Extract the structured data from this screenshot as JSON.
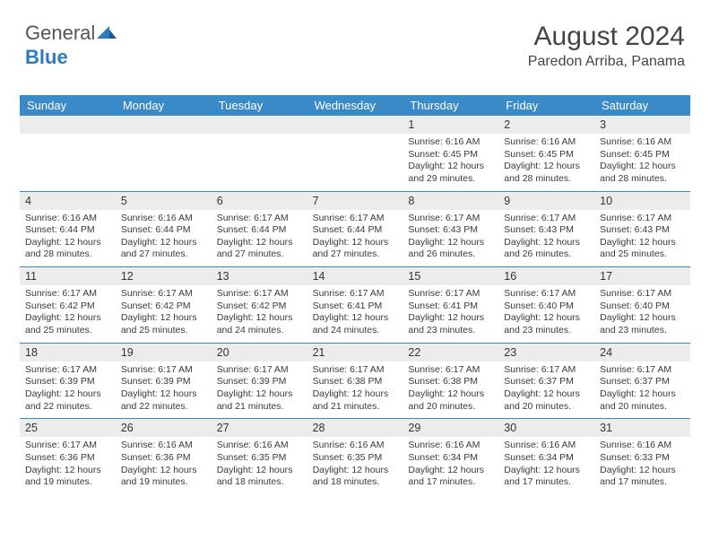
{
  "logo": {
    "part1": "General",
    "part2": "Blue"
  },
  "title": "August 2024",
  "subtitle": "Paredon Arriba, Panama",
  "styling": {
    "header_bg": "#3a8ac8",
    "header_text": "#ffffff",
    "daynum_bg": "#ececec",
    "page_bg": "#ffffff",
    "text_color": "#3a3a3a",
    "week_border": "#3a8ac8",
    "title_fontsize": 30,
    "body_fontsize": 10.5
  },
  "weekdays": [
    "Sunday",
    "Monday",
    "Tuesday",
    "Wednesday",
    "Thursday",
    "Friday",
    "Saturday"
  ],
  "weeks": [
    [
      {
        "empty": true
      },
      {
        "empty": true
      },
      {
        "empty": true
      },
      {
        "empty": true
      },
      {
        "day": "1",
        "sunrise": "Sunrise: 6:16 AM",
        "sunset": "Sunset: 6:45 PM",
        "d1": "Daylight: 12 hours",
        "d2": "and 29 minutes."
      },
      {
        "day": "2",
        "sunrise": "Sunrise: 6:16 AM",
        "sunset": "Sunset: 6:45 PM",
        "d1": "Daylight: 12 hours",
        "d2": "and 28 minutes."
      },
      {
        "day": "3",
        "sunrise": "Sunrise: 6:16 AM",
        "sunset": "Sunset: 6:45 PM",
        "d1": "Daylight: 12 hours",
        "d2": "and 28 minutes."
      }
    ],
    [
      {
        "day": "4",
        "sunrise": "Sunrise: 6:16 AM",
        "sunset": "Sunset: 6:44 PM",
        "d1": "Daylight: 12 hours",
        "d2": "and 28 minutes."
      },
      {
        "day": "5",
        "sunrise": "Sunrise: 6:16 AM",
        "sunset": "Sunset: 6:44 PM",
        "d1": "Daylight: 12 hours",
        "d2": "and 27 minutes."
      },
      {
        "day": "6",
        "sunrise": "Sunrise: 6:17 AM",
        "sunset": "Sunset: 6:44 PM",
        "d1": "Daylight: 12 hours",
        "d2": "and 27 minutes."
      },
      {
        "day": "7",
        "sunrise": "Sunrise: 6:17 AM",
        "sunset": "Sunset: 6:44 PM",
        "d1": "Daylight: 12 hours",
        "d2": "and 27 minutes."
      },
      {
        "day": "8",
        "sunrise": "Sunrise: 6:17 AM",
        "sunset": "Sunset: 6:43 PM",
        "d1": "Daylight: 12 hours",
        "d2": "and 26 minutes."
      },
      {
        "day": "9",
        "sunrise": "Sunrise: 6:17 AM",
        "sunset": "Sunset: 6:43 PM",
        "d1": "Daylight: 12 hours",
        "d2": "and 26 minutes."
      },
      {
        "day": "10",
        "sunrise": "Sunrise: 6:17 AM",
        "sunset": "Sunset: 6:43 PM",
        "d1": "Daylight: 12 hours",
        "d2": "and 25 minutes."
      }
    ],
    [
      {
        "day": "11",
        "sunrise": "Sunrise: 6:17 AM",
        "sunset": "Sunset: 6:42 PM",
        "d1": "Daylight: 12 hours",
        "d2": "and 25 minutes."
      },
      {
        "day": "12",
        "sunrise": "Sunrise: 6:17 AM",
        "sunset": "Sunset: 6:42 PM",
        "d1": "Daylight: 12 hours",
        "d2": "and 25 minutes."
      },
      {
        "day": "13",
        "sunrise": "Sunrise: 6:17 AM",
        "sunset": "Sunset: 6:42 PM",
        "d1": "Daylight: 12 hours",
        "d2": "and 24 minutes."
      },
      {
        "day": "14",
        "sunrise": "Sunrise: 6:17 AM",
        "sunset": "Sunset: 6:41 PM",
        "d1": "Daylight: 12 hours",
        "d2": "and 24 minutes."
      },
      {
        "day": "15",
        "sunrise": "Sunrise: 6:17 AM",
        "sunset": "Sunset: 6:41 PM",
        "d1": "Daylight: 12 hours",
        "d2": "and 23 minutes."
      },
      {
        "day": "16",
        "sunrise": "Sunrise: 6:17 AM",
        "sunset": "Sunset: 6:40 PM",
        "d1": "Daylight: 12 hours",
        "d2": "and 23 minutes."
      },
      {
        "day": "17",
        "sunrise": "Sunrise: 6:17 AM",
        "sunset": "Sunset: 6:40 PM",
        "d1": "Daylight: 12 hours",
        "d2": "and 23 minutes."
      }
    ],
    [
      {
        "day": "18",
        "sunrise": "Sunrise: 6:17 AM",
        "sunset": "Sunset: 6:39 PM",
        "d1": "Daylight: 12 hours",
        "d2": "and 22 minutes."
      },
      {
        "day": "19",
        "sunrise": "Sunrise: 6:17 AM",
        "sunset": "Sunset: 6:39 PM",
        "d1": "Daylight: 12 hours",
        "d2": "and 22 minutes."
      },
      {
        "day": "20",
        "sunrise": "Sunrise: 6:17 AM",
        "sunset": "Sunset: 6:39 PM",
        "d1": "Daylight: 12 hours",
        "d2": "and 21 minutes."
      },
      {
        "day": "21",
        "sunrise": "Sunrise: 6:17 AM",
        "sunset": "Sunset: 6:38 PM",
        "d1": "Daylight: 12 hours",
        "d2": "and 21 minutes."
      },
      {
        "day": "22",
        "sunrise": "Sunrise: 6:17 AM",
        "sunset": "Sunset: 6:38 PM",
        "d1": "Daylight: 12 hours",
        "d2": "and 20 minutes."
      },
      {
        "day": "23",
        "sunrise": "Sunrise: 6:17 AM",
        "sunset": "Sunset: 6:37 PM",
        "d1": "Daylight: 12 hours",
        "d2": "and 20 minutes."
      },
      {
        "day": "24",
        "sunrise": "Sunrise: 6:17 AM",
        "sunset": "Sunset: 6:37 PM",
        "d1": "Daylight: 12 hours",
        "d2": "and 20 minutes."
      }
    ],
    [
      {
        "day": "25",
        "sunrise": "Sunrise: 6:17 AM",
        "sunset": "Sunset: 6:36 PM",
        "d1": "Daylight: 12 hours",
        "d2": "and 19 minutes."
      },
      {
        "day": "26",
        "sunrise": "Sunrise: 6:16 AM",
        "sunset": "Sunset: 6:36 PM",
        "d1": "Daylight: 12 hours",
        "d2": "and 19 minutes."
      },
      {
        "day": "27",
        "sunrise": "Sunrise: 6:16 AM",
        "sunset": "Sunset: 6:35 PM",
        "d1": "Daylight: 12 hours",
        "d2": "and 18 minutes."
      },
      {
        "day": "28",
        "sunrise": "Sunrise: 6:16 AM",
        "sunset": "Sunset: 6:35 PM",
        "d1": "Daylight: 12 hours",
        "d2": "and 18 minutes."
      },
      {
        "day": "29",
        "sunrise": "Sunrise: 6:16 AM",
        "sunset": "Sunset: 6:34 PM",
        "d1": "Daylight: 12 hours",
        "d2": "and 17 minutes."
      },
      {
        "day": "30",
        "sunrise": "Sunrise: 6:16 AM",
        "sunset": "Sunset: 6:34 PM",
        "d1": "Daylight: 12 hours",
        "d2": "and 17 minutes."
      },
      {
        "day": "31",
        "sunrise": "Sunrise: 6:16 AM",
        "sunset": "Sunset: 6:33 PM",
        "d1": "Daylight: 12 hours",
        "d2": "and 17 minutes."
      }
    ]
  ]
}
